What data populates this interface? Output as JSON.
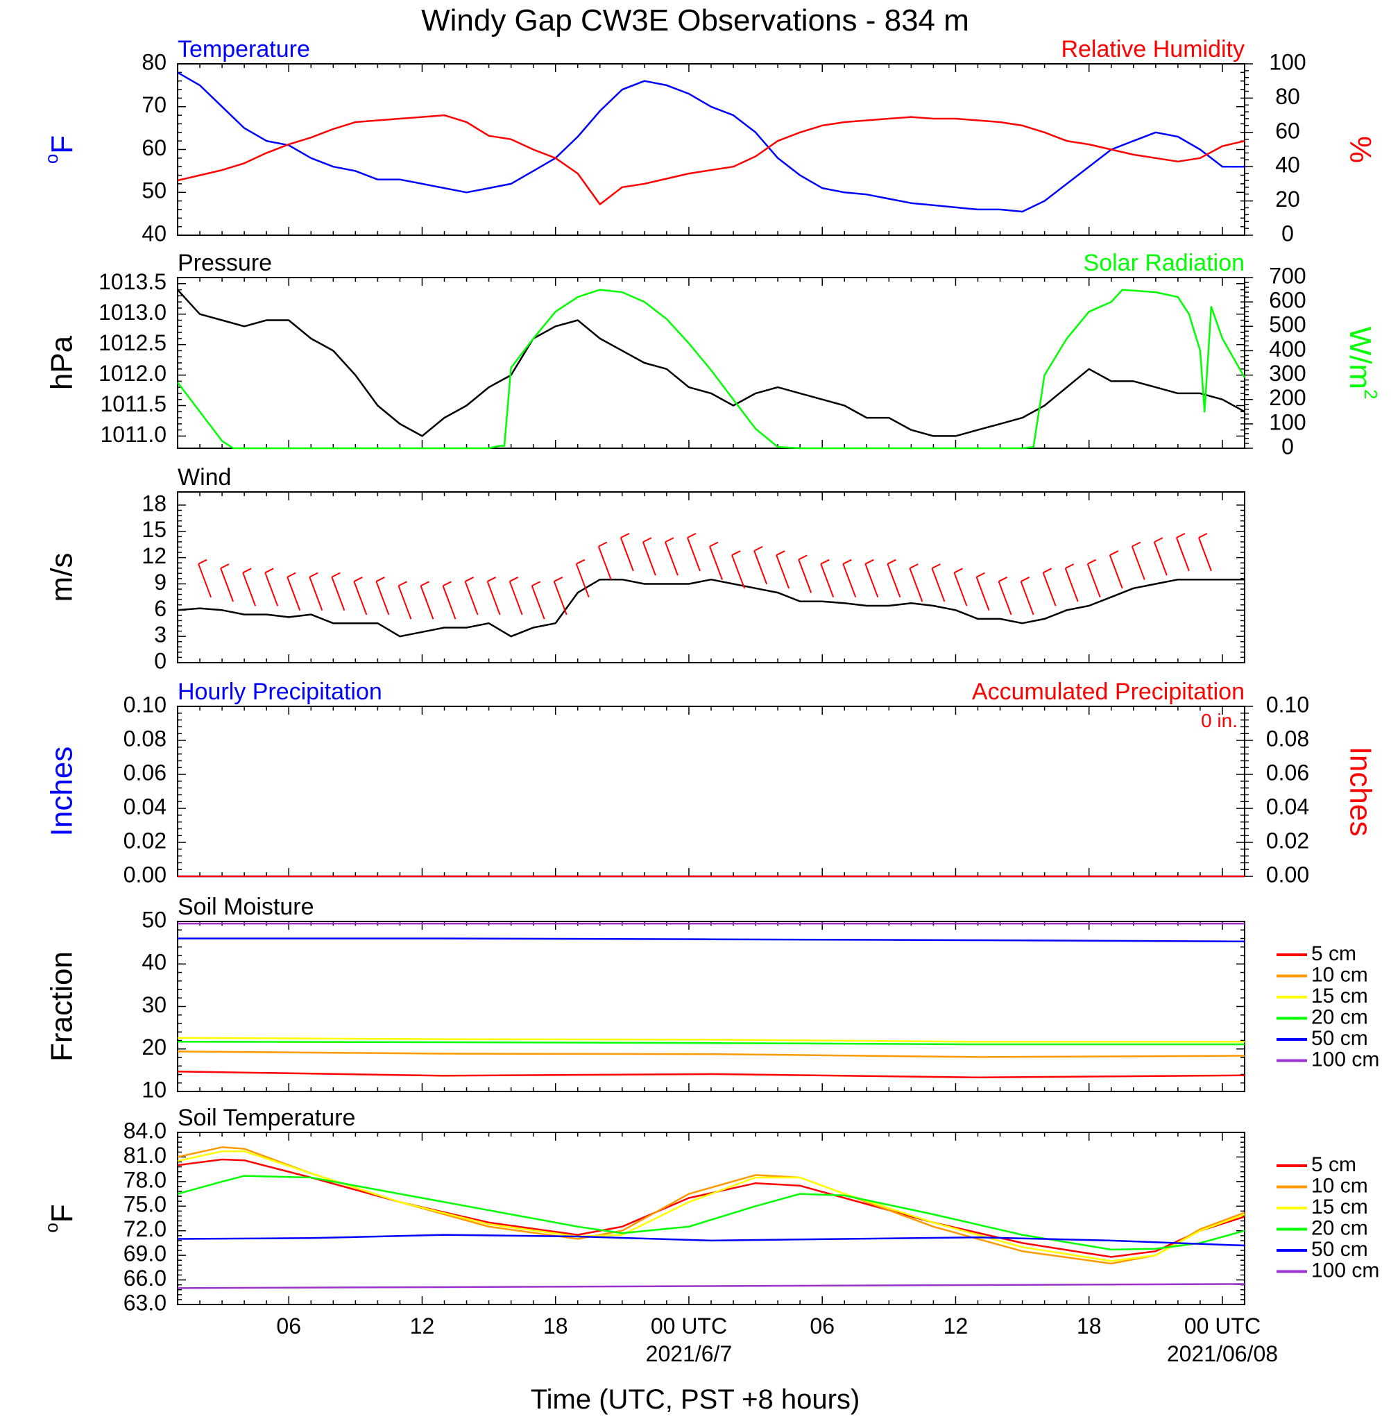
{
  "title": "Windy Gap CW3E Observations - 834 m",
  "xaxis": {
    "label": "Time (UTC, PST +8 hours)",
    "range_hours": [
      0,
      48
    ],
    "ticks": [
      {
        "hour": 5,
        "label": "06"
      },
      {
        "hour": 11,
        "label": "12"
      },
      {
        "hour": 17,
        "label": "18"
      },
      {
        "hour": 23,
        "label": "00 UTC"
      },
      {
        "hour": 29,
        "label": "06"
      },
      {
        "hour": 35,
        "label": "12"
      },
      {
        "hour": 41,
        "label": "18"
      },
      {
        "hour": 47,
        "label": "00 UTC"
      }
    ],
    "date_labels": [
      {
        "hour": 23,
        "label": "2021/6/7"
      },
      {
        "hour": 47,
        "label": "2021/06/08"
      }
    ]
  },
  "colors": {
    "temperature": "#0000ff",
    "humidity": "#ff0000",
    "pressure": "#000000",
    "solar": "#00ff00",
    "wind_speed": "#000000",
    "wind_barb": "#ff0000",
    "hourly_precip": "#0000ff",
    "accum_precip": "#ff0000",
    "depths": [
      "#ff0000",
      "#ff9900",
      "#ffff00",
      "#00ff00",
      "#0000ff",
      "#9933cc"
    ]
  },
  "chart_data": [
    {
      "id": "temperature-humidity",
      "type": "line",
      "left_title": "Temperature",
      "right_title": "Relative Humidity",
      "ylabel_left": "oF",
      "ylabel_right": "%",
      "ylim_left": [
        40,
        80
      ],
      "ylim_right": [
        0,
        100
      ],
      "yticks_left": [
        "40",
        "50",
        "60",
        "70",
        "80"
      ],
      "yticks_right": [
        "0",
        "20",
        "40",
        "60",
        "80",
        "100"
      ],
      "series": [
        {
          "key": "temperature",
          "axis": "left",
          "x": [
            0,
            1,
            2,
            3,
            4,
            5,
            6,
            7,
            8,
            9,
            10,
            11,
            12,
            13,
            14,
            15,
            16,
            17,
            18,
            19,
            20,
            21,
            22,
            23,
            24,
            25,
            26,
            27,
            28,
            29,
            30,
            31,
            32,
            33,
            34,
            35,
            36,
            37,
            38,
            39,
            40,
            41,
            42,
            43,
            44,
            45,
            46,
            47,
            48
          ],
          "values": [
            78,
            75,
            70,
            65,
            62,
            61,
            58,
            56,
            55,
            53,
            53,
            52,
            51,
            50,
            51,
            52,
            55,
            58,
            63,
            69,
            74,
            76,
            75,
            73,
            70,
            68,
            64,
            58,
            54,
            51,
            50,
            49.5,
            48.5,
            47.5,
            47,
            46.5,
            46,
            46,
            45.5,
            48,
            52,
            56,
            60,
            62,
            64,
            63,
            60,
            56,
            56
          ]
        },
        {
          "key": "humidity",
          "axis": "right",
          "x": [
            0,
            1,
            2,
            3,
            4,
            5,
            6,
            7,
            8,
            9,
            10,
            11,
            12,
            13,
            14,
            15,
            16,
            17,
            18,
            19,
            20,
            21,
            22,
            23,
            24,
            25,
            26,
            27,
            28,
            29,
            30,
            31,
            32,
            33,
            34,
            35,
            36,
            37,
            38,
            39,
            40,
            41,
            42,
            43,
            44,
            45,
            46,
            47,
            48
          ],
          "values": [
            32,
            35,
            38,
            42,
            48,
            53,
            57,
            62,
            66,
            67,
            68,
            69,
            70,
            66,
            58,
            56,
            50,
            45,
            36,
            18,
            28,
            30,
            33,
            36,
            38,
            40,
            46,
            55,
            60,
            64,
            66,
            67,
            68,
            69,
            68,
            68,
            67,
            66,
            64,
            60,
            55,
            53,
            50,
            47,
            45,
            43,
            45,
            52,
            55
          ]
        }
      ]
    },
    {
      "id": "pressure-solar",
      "type": "line",
      "left_title": "Pressure",
      "right_title": "Solar Radiation",
      "ylabel_left": "hPa",
      "ylabel_right": "W/m2",
      "ylim_left": [
        1010.8,
        1013.6
      ],
      "ylim_right": [
        0,
        700
      ],
      "yticks_left": [
        "1011.0",
        "1011.5",
        "1012.0",
        "1012.5",
        "1013.0",
        "1013.5"
      ],
      "yticks_left_values": [
        1011.0,
        1011.5,
        1012.0,
        1012.5,
        1013.0,
        1013.5
      ],
      "yticks_right": [
        "0",
        "100",
        "200",
        "300",
        "400",
        "500",
        "600",
        "700"
      ],
      "series": [
        {
          "key": "pressure",
          "axis": "left",
          "x": [
            0,
            1,
            2,
            3,
            4,
            5,
            6,
            7,
            8,
            9,
            10,
            11,
            12,
            13,
            14,
            15,
            16,
            17,
            18,
            19,
            20,
            21,
            22,
            23,
            24,
            25,
            26,
            27,
            28,
            29,
            30,
            31,
            32,
            33,
            34,
            35,
            36,
            37,
            38,
            39,
            40,
            41,
            42,
            43,
            44,
            45,
            46,
            47,
            48
          ],
          "values": [
            1013.4,
            1013.0,
            1012.9,
            1012.8,
            1012.9,
            1012.9,
            1012.6,
            1012.4,
            1012.0,
            1011.5,
            1011.2,
            1011.0,
            1011.3,
            1011.5,
            1011.8,
            1012.0,
            1012.6,
            1012.8,
            1012.9,
            1012.6,
            1012.4,
            1012.2,
            1012.1,
            1011.8,
            1011.7,
            1011.5,
            1011.7,
            1011.8,
            1011.7,
            1011.6,
            1011.5,
            1011.3,
            1011.3,
            1011.1,
            1011.0,
            1011.0,
            1011.1,
            1011.2,
            1011.3,
            1011.5,
            1011.8,
            1012.1,
            1011.9,
            1011.9,
            1011.8,
            1011.7,
            1011.7,
            1011.6,
            1011.4
          ]
        },
        {
          "key": "solar",
          "axis": "right",
          "x": [
            0,
            1,
            2,
            2.5,
            14,
            14.5,
            14.7,
            15,
            16,
            17,
            18,
            19,
            20,
            21,
            22,
            23,
            24,
            25,
            26,
            27,
            28,
            38,
            38.5,
            39,
            40,
            41,
            42,
            42.5,
            44,
            45,
            45.5,
            46,
            46.2,
            46.5,
            47,
            48
          ],
          "values": [
            270,
            150,
            30,
            0,
            0,
            10,
            10,
            330,
            450,
            560,
            620,
            650,
            640,
            600,
            530,
            430,
            320,
            200,
            80,
            5,
            0,
            0,
            5,
            300,
            450,
            560,
            600,
            650,
            640,
            620,
            550,
            400,
            150,
            580,
            450,
            290
          ]
        }
      ]
    },
    {
      "id": "wind",
      "type": "line",
      "left_title": "Wind",
      "ylabel_left": "m/s",
      "ylim_left": [
        0,
        19.5
      ],
      "yticks_left": [
        "0",
        "3",
        "6",
        "9",
        "12",
        "15",
        "18"
      ],
      "series": [
        {
          "key": "wind_speed",
          "axis": "left",
          "x": [
            0,
            1,
            2,
            3,
            4,
            5,
            6,
            7,
            8,
            9,
            10,
            11,
            12,
            13,
            14,
            15,
            16,
            17,
            18,
            19,
            20,
            21,
            22,
            23,
            24,
            25,
            26,
            27,
            28,
            29,
            30,
            31,
            32,
            33,
            34,
            35,
            36,
            37,
            38,
            39,
            40,
            41,
            42,
            43,
            44,
            45,
            46,
            47,
            48
          ],
          "values": [
            6,
            6.2,
            6,
            5.5,
            5.5,
            5.2,
            5.5,
            4.5,
            4.5,
            4.5,
            3,
            3.5,
            4,
            4,
            4.5,
            3,
            4,
            4.5,
            8,
            9.5,
            9.5,
            9,
            9,
            9,
            9.5,
            9,
            8.5,
            8,
            7,
            7,
            6.8,
            6.5,
            6.5,
            6.8,
            6.5,
            6,
            5,
            5,
            4.5,
            5,
            6,
            6.5,
            7.5,
            8.5,
            9,
            9.5,
            9.5,
            9.5,
            9.5
          ]
        }
      ],
      "barbs": {
        "x": [
          1.5,
          2.5,
          3.5,
          4.5,
          5.5,
          6.5,
          7.5,
          8.5,
          9.5,
          10.5,
          11.5,
          12.5,
          13.5,
          14.5,
          15.5,
          16.5,
          17.5,
          18.5,
          19.5,
          20.5,
          21.5,
          22.5,
          23.5,
          24.5,
          25.5,
          26.5,
          27.5,
          28.5,
          29.5,
          30.5,
          31.5,
          32.5,
          33.5,
          34.5,
          35.5,
          36.5,
          37.5,
          38.5,
          39.5,
          40.5,
          41.5,
          42.5,
          43.5,
          44.5,
          45.5,
          46.5
        ],
        "speed": [
          7,
          6.5,
          6,
          6,
          5.5,
          5.5,
          5.5,
          5,
          5,
          4.5,
          4.5,
          4.5,
          5,
          5,
          5,
          4.5,
          5,
          7,
          9,
          10,
          9.5,
          9.5,
          10,
          9,
          8,
          8.5,
          8,
          7.5,
          7,
          7,
          7,
          7,
          6.5,
          6.5,
          6,
          5.5,
          5,
          5,
          6,
          6.5,
          7,
          8,
          9,
          9.5,
          10,
          10
        ]
      }
    },
    {
      "id": "precipitation",
      "type": "line",
      "left_title": "Hourly Precipitation",
      "right_title": "Accumulated Precipitation",
      "annotation": "0 in.",
      "ylabel_left": "Inches",
      "ylabel_right": "Inches",
      "ylim_left": [
        0,
        0.1
      ],
      "ylim_right": [
        0,
        0.1
      ],
      "yticks_left": [
        "0.00",
        "0.02",
        "0.04",
        "0.06",
        "0.08",
        "0.10"
      ],
      "yticks_right": [
        "0.00",
        "0.02",
        "0.04",
        "0.06",
        "0.08",
        "0.10"
      ],
      "series": [
        {
          "key": "hourly_precip",
          "axis": "left",
          "x": [
            0,
            48
          ],
          "values": [
            0,
            0
          ]
        },
        {
          "key": "accum_precip",
          "axis": "right",
          "x": [
            0,
            48
          ],
          "values": [
            0,
            0
          ]
        }
      ]
    },
    {
      "id": "soil-moisture",
      "type": "line",
      "left_title": "Soil Moisture",
      "ylabel_left": "Fraction",
      "ylim_left": [
        10,
        50
      ],
      "yticks_left": [
        "10",
        "20",
        "30",
        "40",
        "50"
      ],
      "legend": [
        "5 cm",
        "10 cm",
        "15 cm",
        "20 cm",
        "50 cm",
        "100 cm"
      ],
      "legend_position": "right",
      "series": [
        {
          "key": "d5",
          "x": [
            0,
            12,
            24,
            36,
            48
          ],
          "values": [
            14.7,
            13.7,
            14.1,
            13.3,
            13.8
          ]
        },
        {
          "key": "d10",
          "x": [
            0,
            12,
            24,
            36,
            48
          ],
          "values": [
            19.4,
            18.9,
            18.8,
            18.1,
            18.4
          ]
        },
        {
          "key": "d15",
          "x": [
            0,
            12,
            24,
            36,
            48
          ],
          "values": [
            22.6,
            22.3,
            22.2,
            21.7,
            21.7
          ]
        },
        {
          "key": "d20",
          "x": [
            0,
            12,
            24,
            36,
            48
          ],
          "values": [
            21.7,
            21.6,
            21.4,
            21.1,
            21.1
          ]
        },
        {
          "key": "d50",
          "x": [
            0,
            12,
            24,
            36,
            48
          ],
          "values": [
            46.0,
            46.0,
            45.8,
            45.6,
            45.3
          ]
        },
        {
          "key": "d100",
          "x": [
            0,
            12,
            24,
            36,
            48
          ],
          "values": [
            49.5,
            49.5,
            49.5,
            49.5,
            49.5
          ]
        }
      ]
    },
    {
      "id": "soil-temperature",
      "type": "line",
      "left_title": "Soil Temperature",
      "ylabel_left": "oF",
      "ylim_left": [
        63,
        84
      ],
      "yticks_left": [
        "63.0",
        "66.0",
        "69.0",
        "72.0",
        "75.0",
        "78.0",
        "81.0",
        "84.0"
      ],
      "legend": [
        "5 cm",
        "10 cm",
        "15 cm",
        "20 cm",
        "50 cm",
        "100 cm"
      ],
      "legend_position": "right",
      "series": [
        {
          "key": "d5",
          "x": [
            0,
            2,
            3,
            6,
            10,
            14,
            18,
            20,
            23,
            26,
            28,
            30,
            34,
            38,
            42,
            44,
            46,
            48
          ],
          "values": [
            80,
            80.7,
            80.6,
            78.5,
            75.5,
            73,
            71.5,
            72.5,
            76,
            77.8,
            77.5,
            76,
            73,
            70.5,
            68.8,
            69.5,
            72,
            73.7
          ]
        },
        {
          "key": "d10",
          "x": [
            0,
            2,
            3,
            6,
            10,
            14,
            18,
            20,
            23,
            26,
            28,
            30,
            34,
            38,
            42,
            44,
            46,
            48
          ],
          "values": [
            81,
            82.2,
            82,
            79,
            75.5,
            72.5,
            71,
            72,
            76.5,
            78.8,
            78.5,
            76.5,
            72.5,
            69.5,
            68,
            69,
            72.2,
            74.2
          ]
        },
        {
          "key": "d15",
          "x": [
            0,
            2,
            3,
            6,
            10,
            14,
            18,
            20,
            23,
            26,
            28,
            30,
            34,
            38,
            42,
            44,
            46,
            48
          ],
          "values": [
            80.5,
            81.7,
            81.7,
            79,
            75.5,
            72.8,
            71.3,
            71.5,
            75.5,
            78.5,
            78.5,
            76.5,
            73,
            70,
            68.3,
            69,
            72,
            74
          ]
        },
        {
          "key": "d20",
          "x": [
            0,
            2,
            3,
            6,
            10,
            14,
            18,
            20,
            23,
            26,
            28,
            30,
            34,
            38,
            42,
            44,
            46,
            48
          ],
          "values": [
            76.5,
            78,
            78.7,
            78.5,
            76.5,
            74.5,
            72.5,
            71.7,
            72.5,
            75,
            76.5,
            76.3,
            74,
            71.5,
            69.7,
            69.8,
            70.5,
            72
          ]
        },
        {
          "key": "d50",
          "x": [
            0,
            6,
            12,
            18,
            24,
            30,
            36,
            42,
            48
          ],
          "values": [
            71,
            71.1,
            71.5,
            71.3,
            70.8,
            71,
            71.2,
            70.8,
            70.2
          ]
        },
        {
          "key": "d100",
          "x": [
            0,
            48
          ],
          "values": [
            65,
            65.5
          ]
        }
      ]
    }
  ]
}
